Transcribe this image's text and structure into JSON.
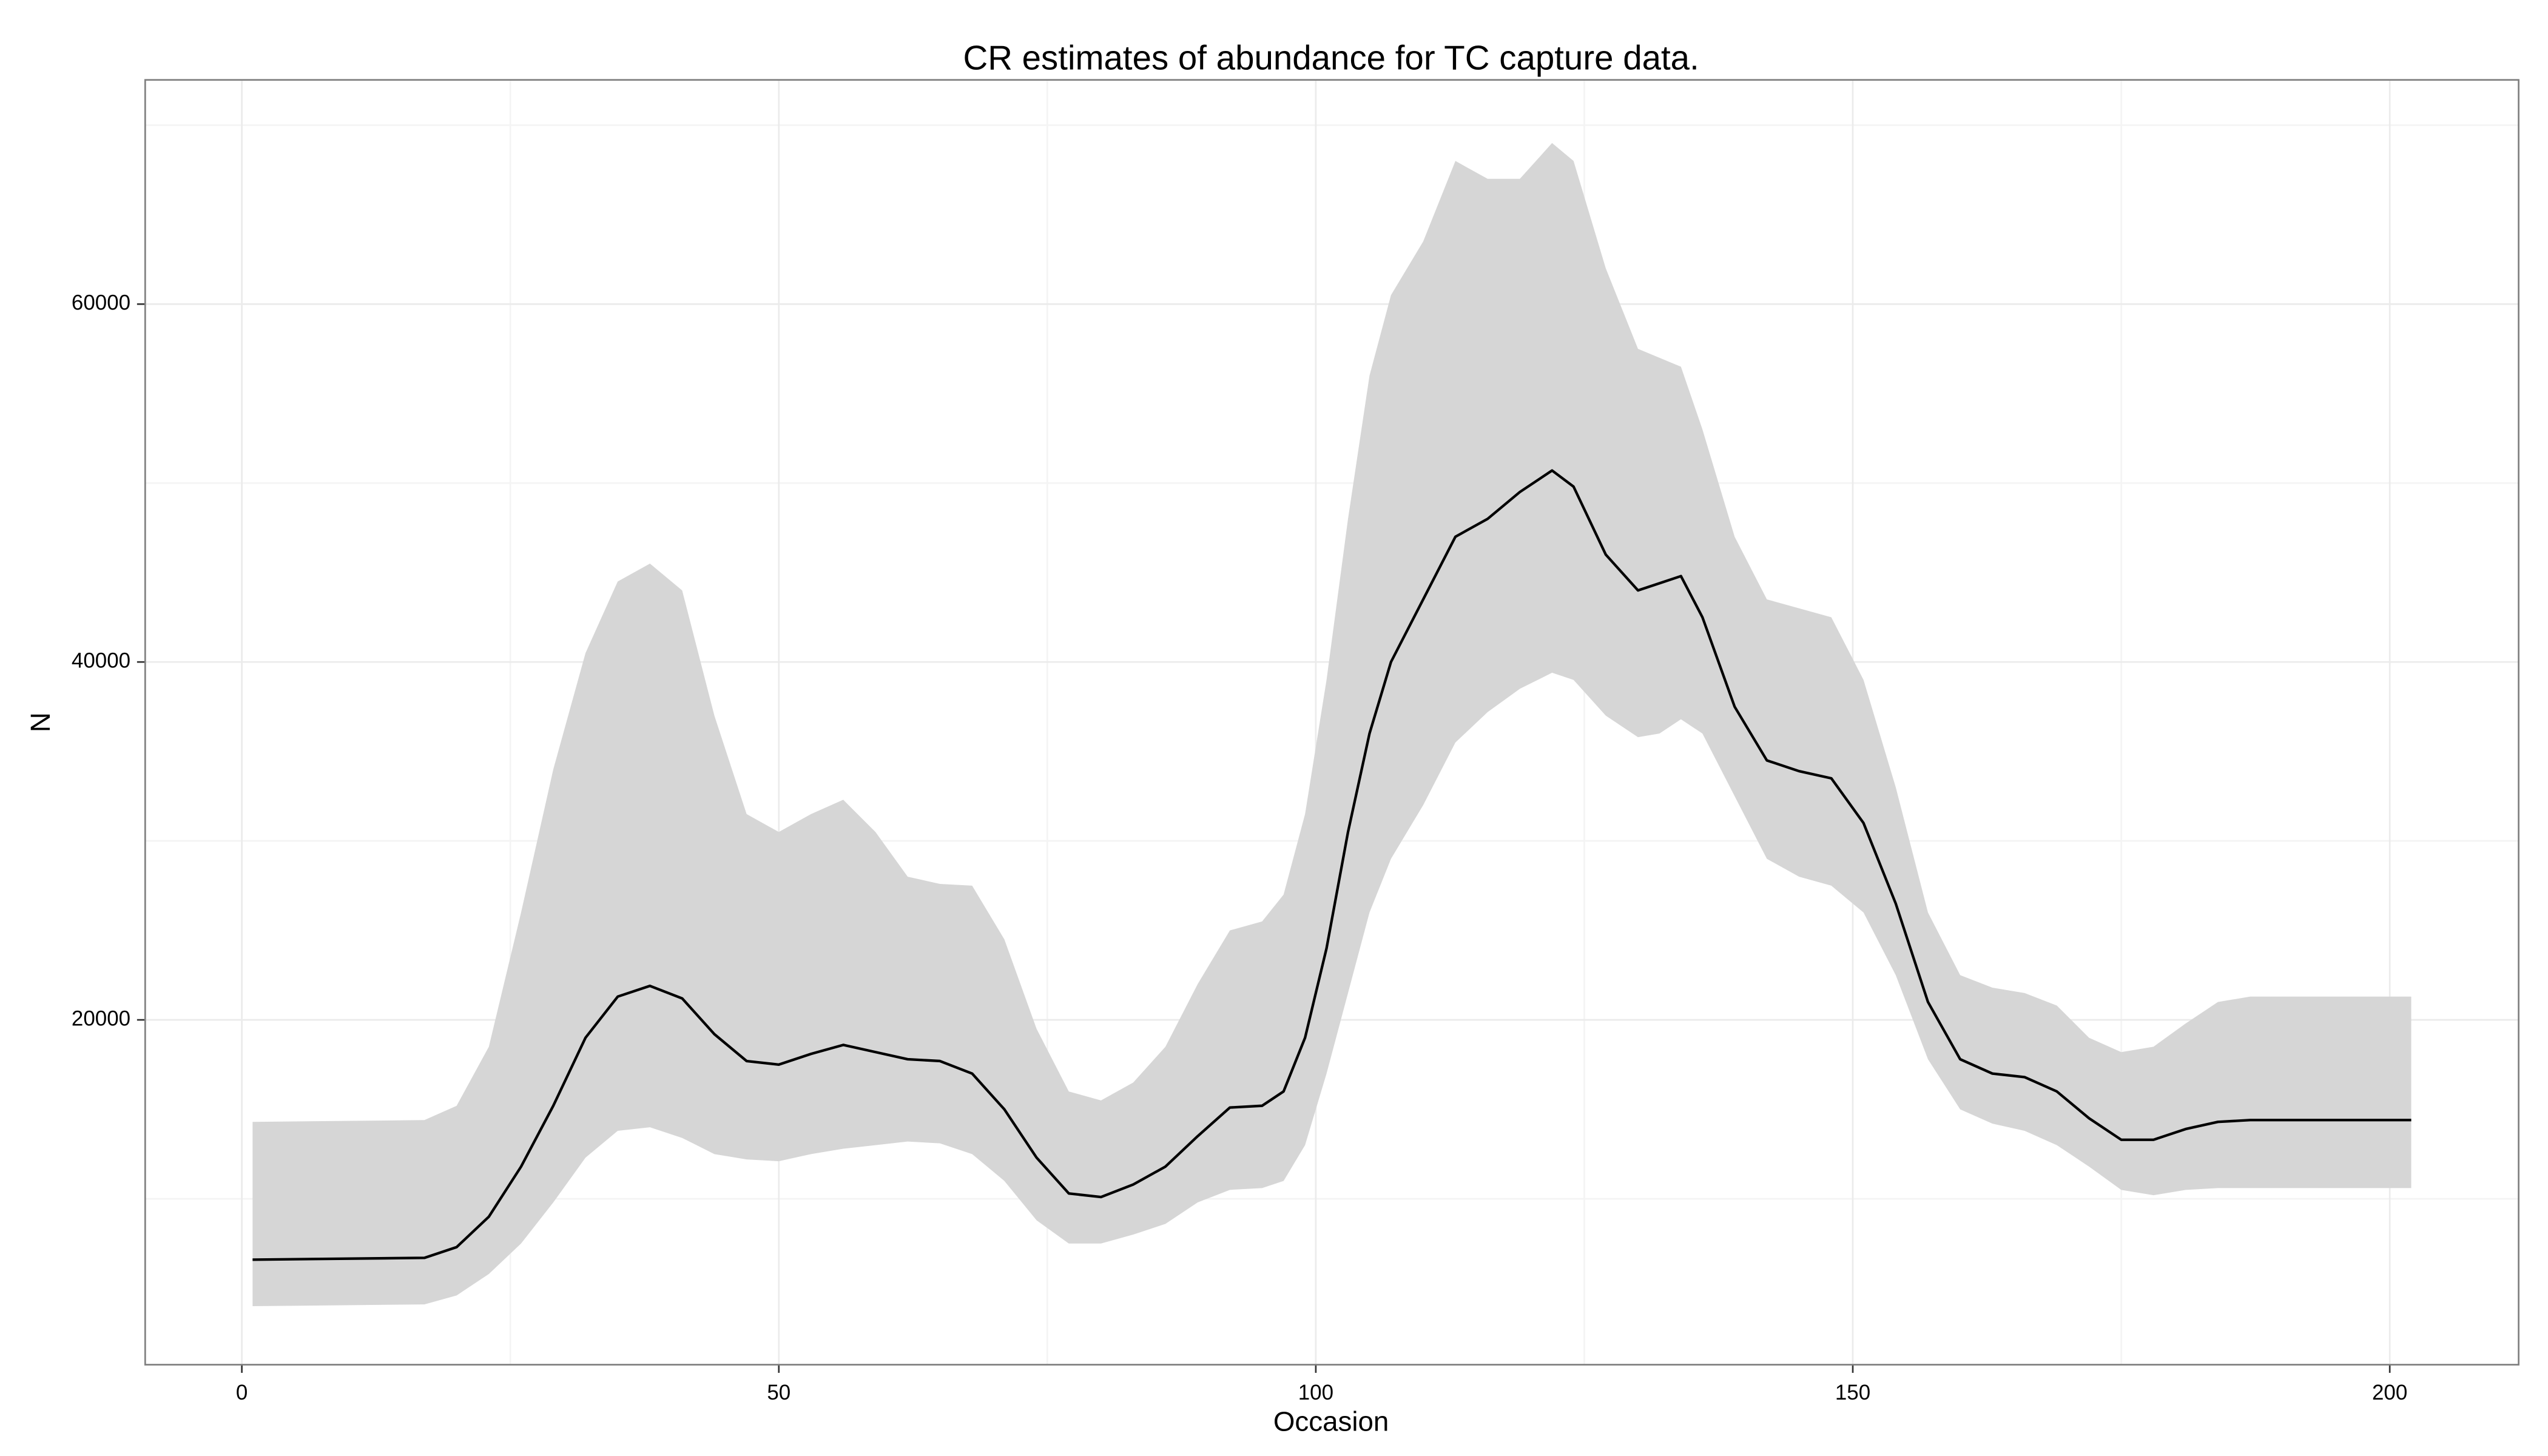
{
  "chart_data": {
    "type": "line",
    "title": "CR estimates of abundance for TC capture data.",
    "x_label": "Occasion",
    "y_label": "N",
    "x": [
      1,
      17,
      20,
      23,
      26,
      29,
      32,
      35,
      38,
      41,
      44,
      47,
      50,
      53,
      56,
      59,
      62,
      65,
      68,
      71,
      74,
      77,
      80,
      83,
      86,
      89,
      92,
      95,
      97,
      99,
      101,
      103,
      105,
      107,
      110,
      113,
      116,
      119,
      122,
      124,
      127,
      130,
      132,
      134,
      136,
      139,
      142,
      145,
      148,
      151,
      154,
      157,
      160,
      163,
      166,
      169,
      172,
      175,
      178,
      181,
      184,
      187,
      202
    ],
    "series": [
      {
        "color": "#000000",
        "values": [
          6600,
          6700,
          7300,
          9000,
          11800,
          15200,
          19000,
          21300,
          21900,
          21200,
          19200,
          17700,
          17500,
          18100,
          18600,
          18200,
          17800,
          17700,
          17000,
          15000,
          12300,
          10300,
          10100,
          10800,
          11800,
          13500,
          15100,
          15200,
          16000,
          19000,
          24000,
          30500,
          36000,
          40000,
          43500,
          47000,
          48000,
          49500,
          50700,
          49800,
          46000,
          44000,
          44400,
          44800,
          42500,
          37500,
          34500,
          33900,
          33500,
          31000,
          26500,
          21000,
          17800,
          17000,
          16800,
          16000,
          14500,
          13300,
          13300,
          13900,
          14300,
          14400,
          14400
        ]
      }
    ],
    "band": {
      "color": "#d6d6d6",
      "upper": [
        14300,
        14400,
        15200,
        18500,
        26000,
        34000,
        40500,
        44500,
        45500,
        44000,
        37000,
        31500,
        30500,
        31500,
        32300,
        30500,
        28000,
        27600,
        27500,
        24500,
        19500,
        16000,
        15500,
        16500,
        18500,
        22000,
        25000,
        25500,
        27000,
        31500,
        39000,
        48000,
        56000,
        60500,
        63500,
        68000,
        67000,
        67000,
        69000,
        68000,
        62000,
        57500,
        57000,
        56500,
        53000,
        47000,
        43500,
        43000,
        42500,
        39000,
        33000,
        26000,
        22500,
        21800,
        21500,
        20800,
        19000,
        18200,
        18500,
        19800,
        21000,
        21300,
        21300
      ],
      "lower": [
        4000,
        4100,
        4600,
        5800,
        7500,
        9800,
        12300,
        13800,
        14000,
        13400,
        12500,
        12200,
        12100,
        12500,
        12800,
        13000,
        13200,
        13100,
        12500,
        11000,
        8800,
        7500,
        7500,
        8000,
        8600,
        9800,
        10500,
        10600,
        11000,
        13000,
        17000,
        21500,
        26000,
        29000,
        32000,
        35500,
        37200,
        38500,
        39400,
        39000,
        37000,
        35800,
        36000,
        36800,
        36000,
        32500,
        29000,
        28000,
        27500,
        26000,
        22500,
        17800,
        15000,
        14200,
        13800,
        13000,
        11800,
        10500,
        10200,
        10500,
        10600,
        10600,
        10600
      ]
    },
    "xlim": [
      -9,
      212
    ],
    "ylim": [
      730,
      72530
    ],
    "xticks": [
      0,
      50,
      100,
      150,
      200
    ],
    "yticks": [
      20000,
      40000,
      60000
    ],
    "xminor": [
      25,
      75,
      125,
      175
    ],
    "yminor": [
      10000,
      30000,
      50000,
      70000
    ],
    "grid": true
  }
}
